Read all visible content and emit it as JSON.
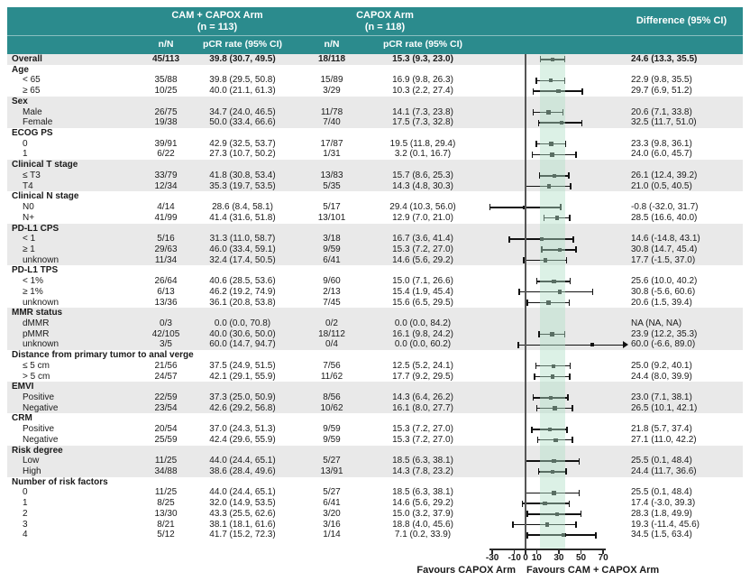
{
  "header": {
    "arm1_title": "CAM + CAPOX Arm",
    "arm1_n": "(n = 113)",
    "arm2_title": "CAPOX Arm",
    "arm2_n": "(n = 118)",
    "col_nN_1": "n/N",
    "col_rate_1": "pCR rate (95% CI)",
    "col_nN_2": "n/N",
    "col_rate_2": "pCR rate (95% CI)",
    "diff_title": "Difference (95% CI)"
  },
  "colors": {
    "header_teal": "#2b8b8d",
    "stripe_gray": "#e9e9e9",
    "shade_green": "rgba(178,224,199,0.45)",
    "zero_line": "#555555",
    "bar": "#111111"
  },
  "chart_data": {
    "type": "forest",
    "x_axis": {
      "min": -30,
      "max": 70,
      "ticks": [
        -30,
        -10,
        0,
        10,
        30,
        50,
        70
      ],
      "reference_line": 0,
      "favours_left": "Favours CAPOX Arm",
      "favours_right": "Favours CAM + CAPOX Arm"
    },
    "shaded_band": [
      13.3,
      35.5
    ],
    "rows": [
      {
        "kind": "overall",
        "label": "Overall",
        "cam_nN": "45/113",
        "cam_rate": "39.8 (30.7, 49.5)",
        "capox_nN": "18/118",
        "capox_rate": "15.3 (9.3, 23.0)",
        "diff": "24.6 (13.3, 35.5)",
        "est": 24.6,
        "lo": 13.3,
        "hi": 35.5
      },
      {
        "kind": "section",
        "label": "Age"
      },
      {
        "kind": "item",
        "label": "< 65",
        "cam_nN": "35/88",
        "cam_rate": "39.8 (29.5, 50.8)",
        "capox_nN": "15/89",
        "capox_rate": "16.9 (9.8, 26.3)",
        "diff": "22.9 (9.8, 35.5)",
        "est": 22.9,
        "lo": 9.8,
        "hi": 35.5
      },
      {
        "kind": "item",
        "label": "≥ 65",
        "cam_nN": "10/25",
        "cam_rate": "40.0 (21.1, 61.3)",
        "capox_nN": "3/29",
        "capox_rate": "10.3 (2.2, 27.4)",
        "diff": "29.7 (6.9, 51.2)",
        "est": 29.7,
        "lo": 6.9,
        "hi": 51.2
      },
      {
        "kind": "section",
        "label": "Sex"
      },
      {
        "kind": "item",
        "label": "Male",
        "cam_nN": "26/75",
        "cam_rate": "34.7 (24.0, 46.5)",
        "capox_nN": "11/78",
        "capox_rate": "14.1 (7.3, 23.8)",
        "diff": "20.6 (7.1, 33.8)",
        "est": 20.6,
        "lo": 7.1,
        "hi": 33.8
      },
      {
        "kind": "item",
        "label": "Female",
        "cam_nN": "19/38",
        "cam_rate": "50.0 (33.4, 66.6)",
        "capox_nN": "7/40",
        "capox_rate": "17.5 (7.3, 32.8)",
        "diff": "32.5 (11.7, 51.0)",
        "est": 32.5,
        "lo": 11.7,
        "hi": 51.0
      },
      {
        "kind": "section",
        "label": "ECOG PS"
      },
      {
        "kind": "item",
        "label": "0",
        "cam_nN": "39/91",
        "cam_rate": "42.9 (32.5, 53.7)",
        "capox_nN": "17/87",
        "capox_rate": "19.5 (11.8, 29.4)",
        "diff": "23.3 (9.8, 36.1)",
        "est": 23.3,
        "lo": 9.8,
        "hi": 36.1
      },
      {
        "kind": "item",
        "label": "1",
        "cam_nN": "6/22",
        "cam_rate": "27.3 (10.7, 50.2)",
        "capox_nN": "1/31",
        "capox_rate": "3.2 (0.1, 16.7)",
        "diff": "24.0 (6.0, 45.7)",
        "est": 24.0,
        "lo": 6.0,
        "hi": 45.7
      },
      {
        "kind": "section",
        "label": "Clinical T stage"
      },
      {
        "kind": "item",
        "label": "≤ T3",
        "cam_nN": "33/79",
        "cam_rate": "41.8 (30.8, 53.4)",
        "capox_nN": "13/83",
        "capox_rate": "15.7 (8.6, 25.3)",
        "diff": "26.1 (12.4, 39.2)",
        "est": 26.1,
        "lo": 12.4,
        "hi": 39.2
      },
      {
        "kind": "item",
        "label": "T4",
        "cam_nN": "12/34",
        "cam_rate": "35.3 (19.7, 53.5)",
        "capox_nN": "5/35",
        "capox_rate": "14.3 (4.8, 30.3)",
        "diff": "21.0 (0.5, 40.5)",
        "est": 21.0,
        "lo": 0.5,
        "hi": 40.5
      },
      {
        "kind": "section",
        "label": "Clinical N stage"
      },
      {
        "kind": "item",
        "label": "N0",
        "cam_nN": "4/14",
        "cam_rate": "28.6 (8.4, 58.1)",
        "capox_nN": "5/17",
        "capox_rate": "29.4 (10.3, 56.0)",
        "diff": "-0.8 (-32.0, 31.7)",
        "est": -0.8,
        "lo": -32.0,
        "hi": 31.7
      },
      {
        "kind": "item",
        "label": "N+",
        "cam_nN": "41/99",
        "cam_rate": "41.4 (31.6, 51.8)",
        "capox_nN": "13/101",
        "capox_rate": "12.9 (7.0, 21.0)",
        "diff": "28.5 (16.6, 40.0)",
        "est": 28.5,
        "lo": 16.6,
        "hi": 40.0
      },
      {
        "kind": "section",
        "label": "PD-L1 CPS"
      },
      {
        "kind": "item",
        "label": "< 1",
        "cam_nN": "5/16",
        "cam_rate": "31.3 (11.0, 58.7)",
        "capox_nN": "3/18",
        "capox_rate": "16.7 (3.6, 41.4)",
        "diff": "14.6 (-14.8, 43.1)",
        "est": 14.6,
        "lo": -14.8,
        "hi": 43.1
      },
      {
        "kind": "item",
        "label": "≥ 1",
        "cam_nN": "29/63",
        "cam_rate": "46.0 (33.4, 59.1)",
        "capox_nN": "9/59",
        "capox_rate": "15.3 (7.2, 27.0)",
        "diff": "30.8 (14.7, 45.4)",
        "est": 30.8,
        "lo": 14.7,
        "hi": 45.4
      },
      {
        "kind": "item",
        "label": "unknown",
        "cam_nN": "11/34",
        "cam_rate": "32.4 (17.4, 50.5)",
        "capox_nN": "6/41",
        "capox_rate": "14.6 (5.6, 29.2)",
        "diff": "17.7 (-1.5, 37.0)",
        "est": 17.7,
        "lo": -1.5,
        "hi": 37.0
      },
      {
        "kind": "section",
        "label": "PD-L1 TPS"
      },
      {
        "kind": "item",
        "label": "< 1%",
        "cam_nN": "26/64",
        "cam_rate": "40.6 (28.5, 53.6)",
        "capox_nN": "9/60",
        "capox_rate": "15.0 (7.1, 26.6)",
        "diff": "25.6 (10.0, 40.2)",
        "est": 25.6,
        "lo": 10.0,
        "hi": 40.2
      },
      {
        "kind": "item",
        "label": "≥ 1%",
        "cam_nN": "6/13",
        "cam_rate": "46.2 (19.2, 74.9)",
        "capox_nN": "2/13",
        "capox_rate": "15.4 (1.9, 45.4)",
        "diff": "30.8 (-5.6, 60.6)",
        "est": 30.8,
        "lo": -5.6,
        "hi": 60.6
      },
      {
        "kind": "item",
        "label": "unknown",
        "cam_nN": "13/36",
        "cam_rate": "36.1 (20.8, 53.8)",
        "capox_nN": "7/45",
        "capox_rate": "15.6 (6.5, 29.5)",
        "diff": "20.6 (1.5, 39.4)",
        "est": 20.6,
        "lo": 1.5,
        "hi": 39.4
      },
      {
        "kind": "section",
        "label": "MMR status"
      },
      {
        "kind": "item",
        "label": "dMMR",
        "cam_nN": "0/3",
        "cam_rate": "0.0 (0.0, 70.8)",
        "capox_nN": "0/2",
        "capox_rate": "0.0 (0.0, 84.2)",
        "diff": "NA (NA, NA)",
        "est": null,
        "lo": null,
        "hi": null
      },
      {
        "kind": "item",
        "label": "pMMR",
        "cam_nN": "42/105",
        "cam_rate": "40.0 (30.6, 50.0)",
        "capox_nN": "18/112",
        "capox_rate": "16.1 (9.8, 24.2)",
        "diff": "23.9 (12.2, 35.3)",
        "est": 23.9,
        "lo": 12.2,
        "hi": 35.3
      },
      {
        "kind": "item",
        "label": "unknown",
        "cam_nN": "3/5",
        "cam_rate": "60.0 (14.7, 94.7)",
        "capox_nN": "0/4",
        "capox_rate": "0.0 (0.0, 60.2)",
        "diff": "60.0 (-6.6, 89.0)",
        "est": 60.0,
        "lo": -6.6,
        "hi": 89.0
      },
      {
        "kind": "section",
        "label": "Distance from primary tumor to anal verge"
      },
      {
        "kind": "item",
        "label": "≤ 5 cm",
        "cam_nN": "21/56",
        "cam_rate": "37.5 (24.9, 51.5)",
        "capox_nN": "7/56",
        "capox_rate": "12.5 (5.2, 24.1)",
        "diff": "25.0 (9.2, 40.1)",
        "est": 25.0,
        "lo": 9.2,
        "hi": 40.1
      },
      {
        "kind": "item",
        "label": "> 5 cm",
        "cam_nN": "24/57",
        "cam_rate": "42.1 (29.1, 55.9)",
        "capox_nN": "11/62",
        "capox_rate": "17.7 (9.2, 29.5)",
        "diff": "24.4 (8.0, 39.9)",
        "est": 24.4,
        "lo": 8.0,
        "hi": 39.9
      },
      {
        "kind": "section",
        "label": "EMVI"
      },
      {
        "kind": "item",
        "label": "Positive",
        "cam_nN": "22/59",
        "cam_rate": "37.3 (25.0, 50.9)",
        "capox_nN": "8/56",
        "capox_rate": "14.3 (6.4, 26.2)",
        "diff": "23.0 (7.1, 38.1)",
        "est": 23.0,
        "lo": 7.1,
        "hi": 38.1
      },
      {
        "kind": "item",
        "label": "Negative",
        "cam_nN": "23/54",
        "cam_rate": "42.6 (29.2, 56.8)",
        "capox_nN": "10/62",
        "capox_rate": "16.1 (8.0, 27.7)",
        "diff": "26.5 (10.1, 42.1)",
        "est": 26.5,
        "lo": 10.1,
        "hi": 42.1
      },
      {
        "kind": "section",
        "label": "CRM"
      },
      {
        "kind": "item",
        "label": "Positive",
        "cam_nN": "20/54",
        "cam_rate": "37.0 (24.3, 51.3)",
        "capox_nN": "9/59",
        "capox_rate": "15.3 (7.2, 27.0)",
        "diff": "21.8 (5.7, 37.4)",
        "est": 21.8,
        "lo": 5.7,
        "hi": 37.4
      },
      {
        "kind": "item",
        "label": "Negative",
        "cam_nN": "25/59",
        "cam_rate": "42.4 (29.6, 55.9)",
        "capox_nN": "9/59",
        "capox_rate": "15.3 (7.2, 27.0)",
        "diff": "27.1 (11.0, 42.2)",
        "est": 27.1,
        "lo": 11.0,
        "hi": 42.2
      },
      {
        "kind": "section",
        "label": "Risk degree"
      },
      {
        "kind": "item",
        "label": "Low",
        "cam_nN": "11/25",
        "cam_rate": "44.0 (24.4, 65.1)",
        "capox_nN": "5/27",
        "capox_rate": "18.5 (6.3, 38.1)",
        "diff": "25.5 (0.1, 48.4)",
        "est": 25.5,
        "lo": 0.1,
        "hi": 48.4
      },
      {
        "kind": "item",
        "label": "High",
        "cam_nN": "34/88",
        "cam_rate": "38.6 (28.4, 49.6)",
        "capox_nN": "13/91",
        "capox_rate": "14.3 (7.8, 23.2)",
        "diff": "24.4 (11.7, 36.6)",
        "est": 24.4,
        "lo": 11.7,
        "hi": 36.6
      },
      {
        "kind": "section",
        "label": "Number of risk factors"
      },
      {
        "kind": "item",
        "label": "0",
        "cam_nN": "11/25",
        "cam_rate": "44.0 (24.4, 65.1)",
        "capox_nN": "5/27",
        "capox_rate": "18.5 (6.3, 38.1)",
        "diff": "25.5 (0.1, 48.4)",
        "est": 25.5,
        "lo": 0.1,
        "hi": 48.4
      },
      {
        "kind": "item",
        "label": "1",
        "cam_nN": "8/25",
        "cam_rate": "32.0 (14.9, 53.5)",
        "capox_nN": "6/41",
        "capox_rate": "14.6 (5.6, 29.2)",
        "diff": "17.4 (-3.0, 39.3)",
        "est": 17.4,
        "lo": -3.0,
        "hi": 39.3
      },
      {
        "kind": "item",
        "label": "2",
        "cam_nN": "13/30",
        "cam_rate": "43.3 (25.5, 62.6)",
        "capox_nN": "3/20",
        "capox_rate": "15.0 (3.2, 37.9)",
        "diff": "28.3 (1.8, 49.9)",
        "est": 28.3,
        "lo": 1.8,
        "hi": 49.9
      },
      {
        "kind": "item",
        "label": "3",
        "cam_nN": "8/21",
        "cam_rate": "38.1 (18.1, 61.6)",
        "capox_nN": "3/16",
        "capox_rate": "18.8 (4.0, 45.6)",
        "diff": "19.3 (-11.4, 45.6)",
        "est": 19.3,
        "lo": -11.4,
        "hi": 45.6
      },
      {
        "kind": "item",
        "label": "4",
        "cam_nN": "5/12",
        "cam_rate": "41.7 (15.2, 72.3)",
        "capox_nN": "1/14",
        "capox_rate": "7.1 (0.2, 33.9)",
        "diff": "34.5 (1.5, 63.4)",
        "est": 34.5,
        "lo": 1.5,
        "hi": 63.4
      }
    ]
  }
}
